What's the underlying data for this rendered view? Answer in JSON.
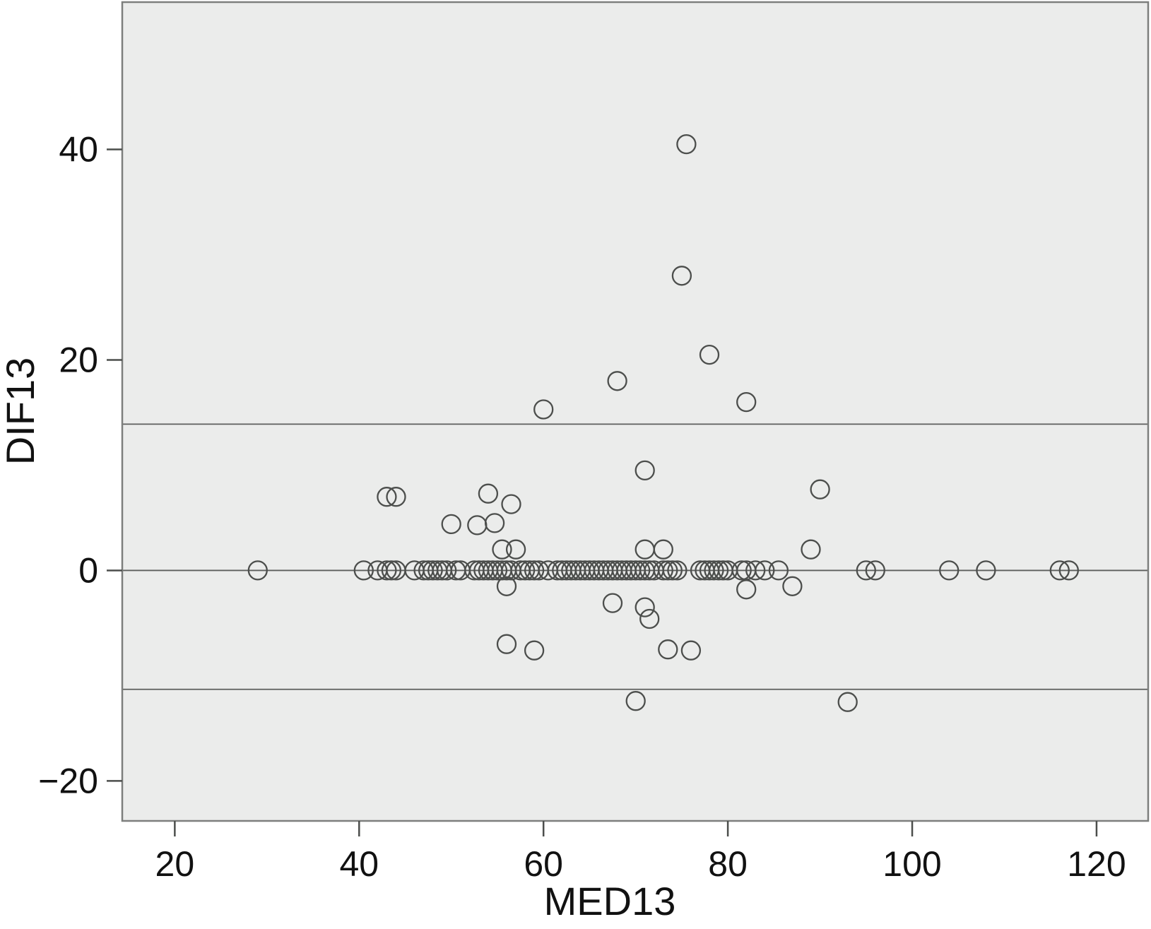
{
  "chart_data": {
    "type": "scatter",
    "title": "",
    "xlabel": "MED13",
    "ylabel": "DIF13",
    "xlim": [
      14.3,
      125.6
    ],
    "ylim": [
      -23.8,
      54.0
    ],
    "x_ticks": [
      20,
      40,
      60,
      80,
      100,
      120
    ],
    "y_ticks": [
      -20,
      0,
      20,
      40
    ],
    "grid": false,
    "legend": "none",
    "marker": "open-circle",
    "reference_lines": [
      {
        "name": "upper-limit-of-agreement",
        "y": 13.9
      },
      {
        "name": "zero-line",
        "y": 0
      },
      {
        "name": "lower-limit-of-agreement",
        "y": -11.3
      }
    ],
    "colors": {
      "plot_background": "#ebeceb",
      "plot_border": "#7d7f7d",
      "marker_stroke": "#4c4e4c",
      "reference_line": "#5c5e5c",
      "text": "#111111"
    },
    "points": [
      [
        29,
        0
      ],
      [
        40.5,
        0
      ],
      [
        42,
        0
      ],
      [
        43,
        0
      ],
      [
        43.5,
        0
      ],
      [
        44,
        0
      ],
      [
        46,
        0
      ],
      [
        47,
        0
      ],
      [
        47.5,
        0
      ],
      [
        48,
        0
      ],
      [
        48.5,
        0
      ],
      [
        49,
        0
      ],
      [
        49.5,
        0
      ],
      [
        50.5,
        0
      ],
      [
        51,
        0
      ],
      [
        52.5,
        0
      ],
      [
        53,
        0
      ],
      [
        53.5,
        0
      ],
      [
        54,
        0
      ],
      [
        54.5,
        0
      ],
      [
        55,
        0
      ],
      [
        55.5,
        0
      ],
      [
        56,
        0
      ],
      [
        56.5,
        0
      ],
      [
        57.5,
        0
      ],
      [
        58,
        0
      ],
      [
        58.5,
        0
      ],
      [
        59,
        0
      ],
      [
        59.5,
        0
      ],
      [
        60.5,
        0
      ],
      [
        61.5,
        0
      ],
      [
        62,
        0
      ],
      [
        62.5,
        0
      ],
      [
        63,
        0
      ],
      [
        63.5,
        0
      ],
      [
        64,
        0
      ],
      [
        64.5,
        0
      ],
      [
        65,
        0
      ],
      [
        65.5,
        0
      ],
      [
        66,
        0
      ],
      [
        66.5,
        0
      ],
      [
        67,
        0
      ],
      [
        67.5,
        0
      ],
      [
        68,
        0
      ],
      [
        68.5,
        0
      ],
      [
        69,
        0
      ],
      [
        69.5,
        0
      ],
      [
        70,
        0
      ],
      [
        70.5,
        0
      ],
      [
        71,
        0
      ],
      [
        71.5,
        0
      ],
      [
        72,
        0
      ],
      [
        73,
        0
      ],
      [
        73.5,
        0
      ],
      [
        74,
        0
      ],
      [
        74.5,
        0
      ],
      [
        77,
        0
      ],
      [
        77.5,
        0
      ],
      [
        78,
        0
      ],
      [
        78.5,
        0
      ],
      [
        79,
        0
      ],
      [
        79.5,
        0
      ],
      [
        80,
        0
      ],
      [
        81.5,
        0
      ],
      [
        82,
        0
      ],
      [
        83,
        0
      ],
      [
        84,
        0
      ],
      [
        85.5,
        0
      ],
      [
        95,
        0
      ],
      [
        96,
        0
      ],
      [
        104,
        0
      ],
      [
        108,
        0
      ],
      [
        116,
        0
      ],
      [
        117,
        0
      ],
      [
        75.5,
        40.5
      ],
      [
        75,
        28
      ],
      [
        78,
        20.5
      ],
      [
        68,
        18
      ],
      [
        82,
        16
      ],
      [
        60,
        15.3
      ],
      [
        71,
        9.5
      ],
      [
        90,
        7.7
      ],
      [
        43,
        7
      ],
      [
        44,
        7
      ],
      [
        54,
        7.3
      ],
      [
        56.5,
        6.3
      ],
      [
        50,
        4.4
      ],
      [
        52.8,
        4.3
      ],
      [
        54.7,
        4.5
      ],
      [
        55.5,
        2
      ],
      [
        57,
        2
      ],
      [
        71,
        2
      ],
      [
        73,
        2
      ],
      [
        89,
        2
      ],
      [
        56,
        -1.5
      ],
      [
        82,
        -1.8
      ],
      [
        87,
        -1.5
      ],
      [
        67.5,
        -3.1
      ],
      [
        71,
        -3.5
      ],
      [
        71.5,
        -4.6
      ],
      [
        56,
        -7
      ],
      [
        59,
        -7.6
      ],
      [
        73.5,
        -7.5
      ],
      [
        76,
        -7.6
      ],
      [
        70,
        -12.4
      ],
      [
        93,
        -12.5
      ]
    ]
  }
}
